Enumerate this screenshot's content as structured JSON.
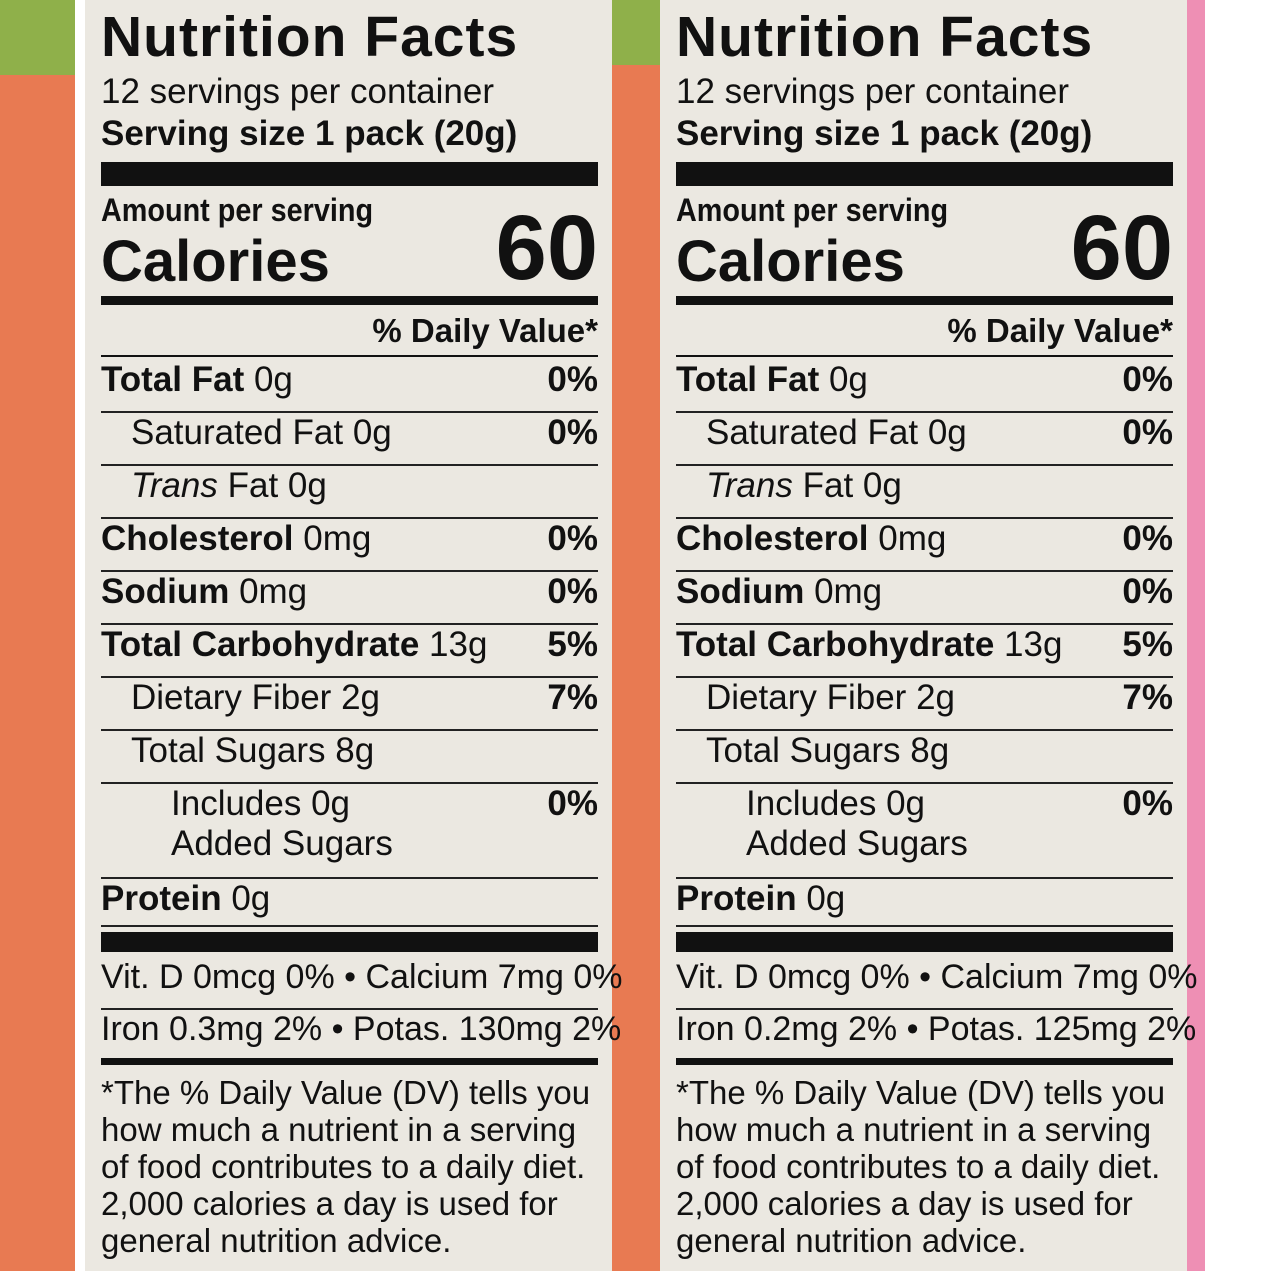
{
  "panels": [
    {
      "title": "Nutrition Facts",
      "servings": "12 servings per container",
      "serving_size_label": "Serving size",
      "serving_size": "1 pack (20g)",
      "amount_per_serving": "Amount per serving",
      "calories_label": "Calories",
      "calories": "60",
      "dv_header": "% Daily Value*",
      "nutrients": [
        {
          "name": "Total Fat",
          "amount": "0g",
          "dv": "0%"
        },
        {
          "name": "Saturated Fat",
          "amount": "0g",
          "dv": "0%"
        },
        {
          "name": "Trans",
          "amount": "Fat 0g"
        },
        {
          "name": "Cholesterol",
          "amount": "0mg",
          "dv": "0%"
        },
        {
          "name": "Sodium",
          "amount": "0mg",
          "dv": "0%"
        },
        {
          "name": "Total Carbohydrate",
          "amount": "13g",
          "dv": "5%"
        },
        {
          "name": "Dietary Fiber",
          "amount": "2g",
          "dv": "7%"
        },
        {
          "name": "Total Sugars",
          "amount": "8g"
        },
        {
          "name": "Includes 0g",
          "amount": "Added Sugars",
          "dv": "0%"
        },
        {
          "name": "Protein",
          "amount": "0g"
        }
      ],
      "minerals": [
        "Vit. D 0mcg 0% • Calcium 7mg 0%",
        "Iron 0.3mg 2% • Potas. 130mg 2%"
      ],
      "footnote": [
        "*The % Daily Value (DV) tells you",
        "how much a nutrient in a serving",
        "of food contributes to a daily diet.",
        "2,000 calories a day is used for",
        "general nutrition advice."
      ]
    },
    {
      "title": "Nutrition Facts",
      "servings": "12 servings per container",
      "serving_size_label": "Serving size",
      "serving_size": "1 pack (20g)",
      "amount_per_serving": "Amount per serving",
      "calories_label": "Calories",
      "calories": "60",
      "dv_header": "% Daily Value*",
      "nutrients": [
        {
          "name": "Total Fat",
          "amount": "0g",
          "dv": "0%"
        },
        {
          "name": "Saturated Fat",
          "amount": "0g",
          "dv": "0%"
        },
        {
          "name": "Trans",
          "amount": "Fat 0g"
        },
        {
          "name": "Cholesterol",
          "amount": "0mg",
          "dv": "0%"
        },
        {
          "name": "Sodium",
          "amount": "0mg",
          "dv": "0%"
        },
        {
          "name": "Total Carbohydrate",
          "amount": "13g",
          "dv": "5%"
        },
        {
          "name": "Dietary Fiber",
          "amount": "2g",
          "dv": "7%"
        },
        {
          "name": "Total Sugars",
          "amount": "8g"
        },
        {
          "name": "Includes 0g",
          "amount": "Added Sugars",
          "dv": "0%"
        },
        {
          "name": "Protein",
          "amount": "0g"
        }
      ],
      "minerals": [
        "Vit. D 0mcg 0% • Calcium 7mg 0%",
        "Iron 0.2mg 2% • Potas. 125mg 2%"
      ],
      "footnote": [
        "*The % Daily Value (DV) tells you",
        "how much a nutrient in a serving",
        "of food contributes to a daily diet.",
        "2,000 calories a day is used for",
        "general nutrition advice."
      ]
    }
  ]
}
